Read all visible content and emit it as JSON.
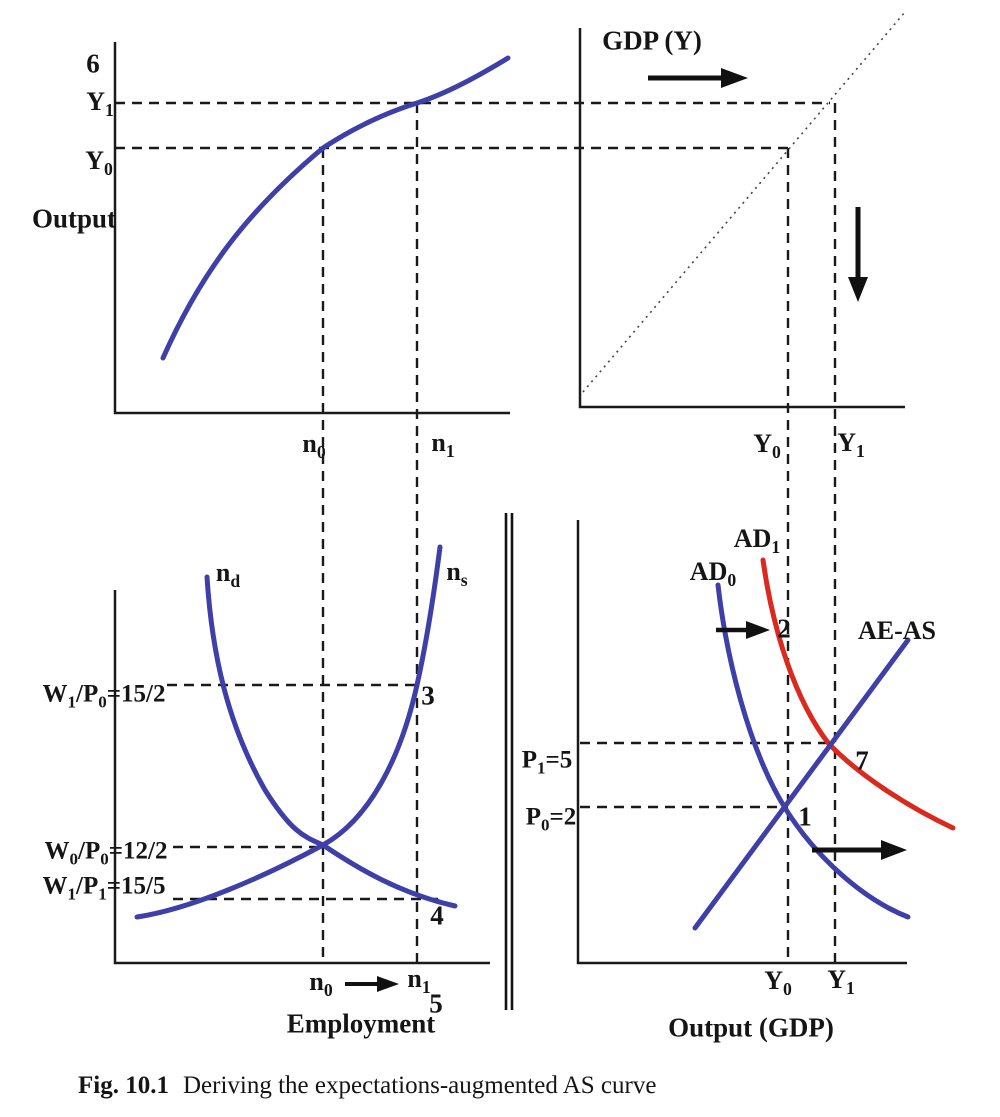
{
  "colors": {
    "curve_blue": "#3f3fa8",
    "curve_red": "#da2a1f",
    "ink_black": "#1a1a1a"
  },
  "panels": {
    "production": {
      "step6": "6",
      "y1": [
        {
          "t": "Y"
        },
        {
          "s": "1"
        }
      ],
      "y0": [
        {
          "t": "Y"
        },
        {
          "s": "0"
        }
      ],
      "axis_label": "Output",
      "n0": [
        {
          "t": "n"
        },
        {
          "s": "0"
        }
      ],
      "n1": [
        {
          "t": "n"
        },
        {
          "s": "1"
        }
      ],
      "curve": "production-function"
    },
    "gdp45": {
      "title": "GDP (Y)",
      "y0": [
        {
          "t": "Y"
        },
        {
          "s": "0"
        }
      ],
      "y1": [
        {
          "t": "Y"
        },
        {
          "s": "1"
        }
      ],
      "line": "45-degree dotted line"
    },
    "labor": {
      "nd": [
        {
          "t": "n"
        },
        {
          "s": "d"
        }
      ],
      "ns": [
        {
          "t": "n"
        },
        {
          "s": "s"
        }
      ],
      "w1p0": [
        {
          "t": "W"
        },
        {
          "s": "1"
        },
        {
          "t": "/P"
        },
        {
          "s": "0"
        },
        {
          "t": "=15/2"
        }
      ],
      "w0p0": [
        {
          "t": "W"
        },
        {
          "s": "0"
        },
        {
          "t": "/P"
        },
        {
          "s": "0"
        },
        {
          "t": "=12/2"
        }
      ],
      "w1p1": [
        {
          "t": "W"
        },
        {
          "s": "1"
        },
        {
          "t": "/P"
        },
        {
          "s": "1"
        },
        {
          "t": "=15/5"
        }
      ],
      "step3": "3",
      "step4": "4",
      "step5": "5",
      "n0": [
        {
          "t": "n"
        },
        {
          "s": "0"
        }
      ],
      "n1": [
        {
          "t": "n"
        },
        {
          "s": "1"
        }
      ],
      "axis_label": "Employment"
    },
    "adas": {
      "ad0": [
        {
          "t": "AD"
        },
        {
          "s": "0"
        }
      ],
      "ad1": [
        {
          "t": "AD"
        },
        {
          "s": "1"
        }
      ],
      "aeas": "AE-AS",
      "p1": [
        {
          "t": "P"
        },
        {
          "s": "1"
        },
        {
          "t": "=5"
        }
      ],
      "p0": [
        {
          "t": "P"
        },
        {
          "s": "0"
        },
        {
          "t": "=2"
        }
      ],
      "step1": "1",
      "step2": "2",
      "step7": "7",
      "y0": [
        {
          "t": "Y"
        },
        {
          "s": "0"
        }
      ],
      "y1": [
        {
          "t": "Y"
        },
        {
          "s": "1"
        }
      ],
      "axis_label": "Output (GDP)"
    }
  },
  "caption": {
    "label": "Fig. 10.1",
    "text": "Deriving the expectations-augmented AS curve"
  }
}
